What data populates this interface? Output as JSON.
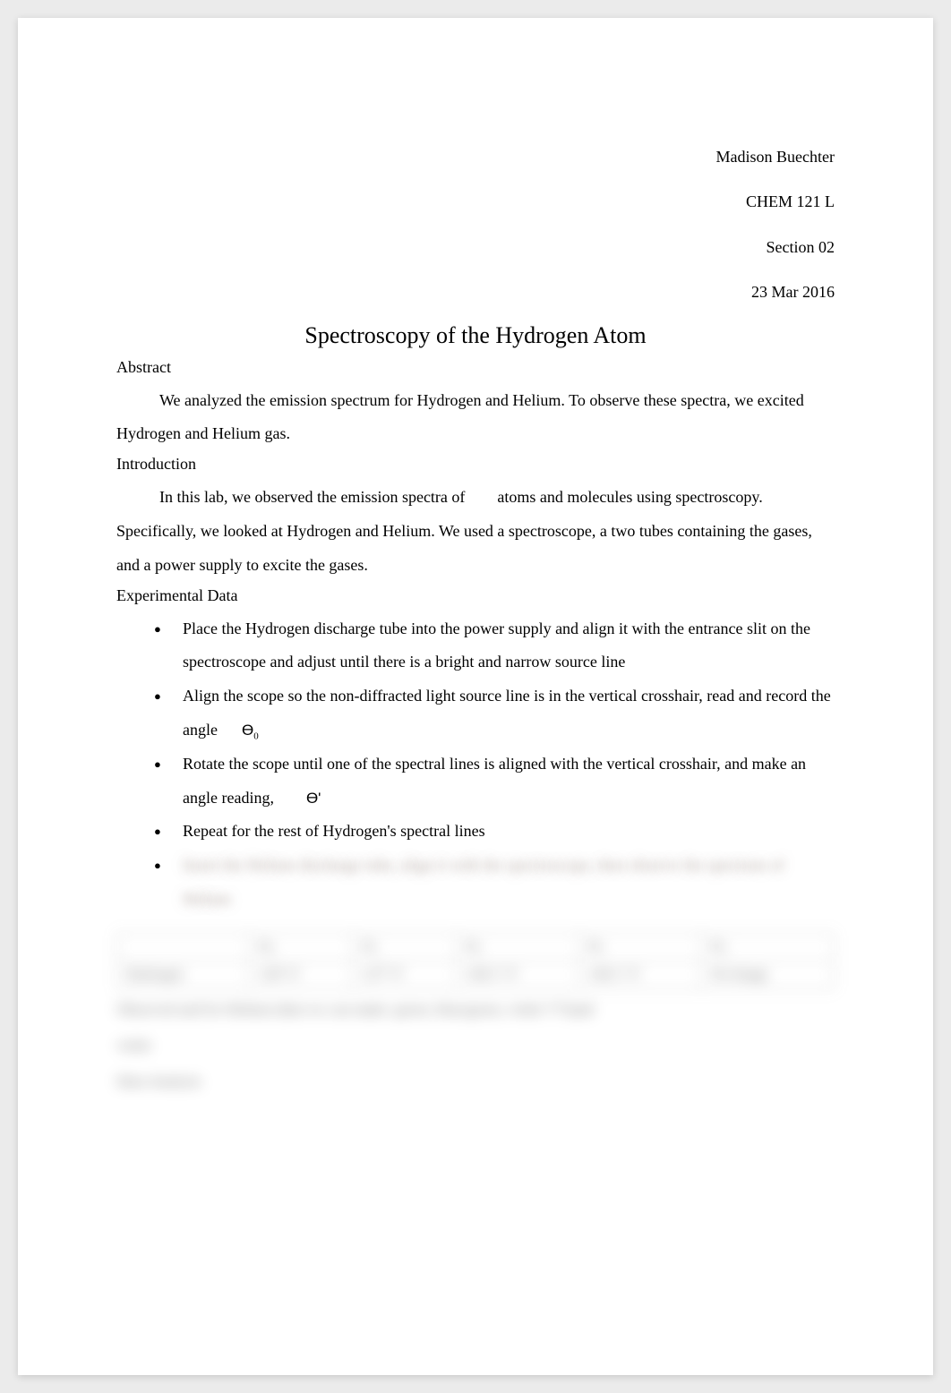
{
  "header": {
    "author": "Madison Buechter",
    "course": "CHEM 121 L",
    "section": "Section 02",
    "date": "23 Mar 2016"
  },
  "title": "Spectroscopy of the Hydrogen Atom",
  "sections": {
    "abstract": {
      "heading": "Abstract",
      "body": "We analyzed the emission spectrum for Hydrogen and Helium. To observe these spectra, we excited Hydrogen and Helium gas."
    },
    "introduction": {
      "heading": "Introduction",
      "body_part1": "In this lab, we observed the emission spectra of",
      "body_part2": "atoms and molecules using spectroscopy. Specifically, we looked at Hydrogen and Helium. We used a spectroscope, a two tubes containing the gases, and a power supply to excite the gases."
    },
    "experimental": {
      "heading": "Experimental Data",
      "bullets": [
        "Place the Hydrogen discharge tube into the power supply and align it with the entrance slit on the spectroscope and adjust until there is a bright and narrow source line",
        "Align the scope so the non-diffracted light source line is in the vertical crosshair, read and record the angle",
        "Rotate the scope until one of the spectral lines is aligned with the vertical crosshair, and make an angle reading,",
        "Repeat for the rest of Hydrogen's spectral lines",
        "Insert the Helium discharge tube, align it with the spectroscope, then observe the spectrum of Helium"
      ],
      "theta0": "ϴ",
      "theta0_sub": "0",
      "theta_prime": "ϴ'"
    }
  },
  "blurred_table": {
    "headers": [
      "",
      "ϴ₀",
      "ϴ₁",
      "ϴ₂",
      "ϴ₃",
      "ϴ₄"
    ],
    "row": [
      "Hydrogen",
      "126° 0'",
      "127° 0'",
      "140.1° 0'",
      "140.1° 0'",
      "No Image"
    ]
  },
  "blurred_footer": {
    "line1": "Observed and for Helium (that we can make: green, blue/green, violet ???)and",
    "line2": "violet",
    "line3": "Data Analysis"
  },
  "colors": {
    "page_bg": "#ffffff",
    "body_bg": "#ebebeb",
    "text": "#000000",
    "blur_tint": "rgba(120,100,90,0.6)"
  }
}
